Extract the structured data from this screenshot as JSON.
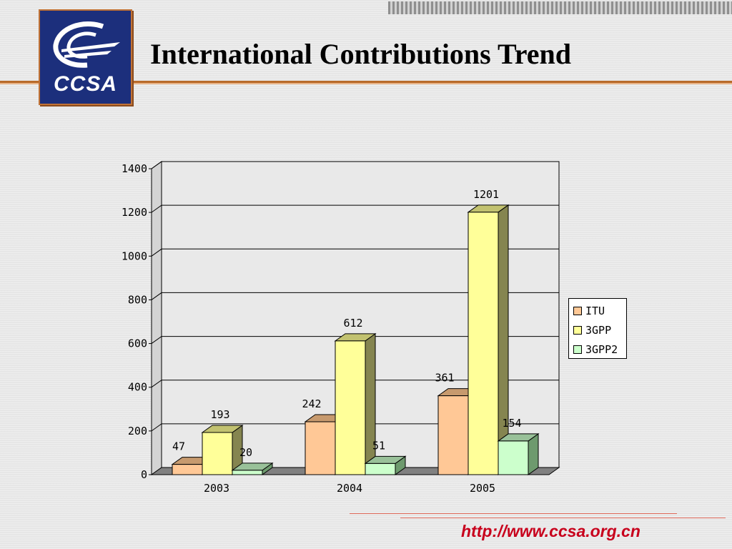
{
  "header": {
    "title": "International Contributions Trend",
    "logo_text": "CCSA"
  },
  "footer": {
    "url": "http://www.ccsa.org.cn"
  },
  "colors": {
    "ITU": "#ffc896",
    "3GPP": "#ffff99",
    "3GPP2": "#ccffcc",
    "logo_bg": "#1c2f7c",
    "accent": "#b86a2a",
    "url": "#c8001c"
  },
  "chart_data": {
    "type": "bar",
    "categories": [
      "2003",
      "2004",
      "2005"
    ],
    "series": [
      {
        "name": "ITU",
        "values": [
          47,
          242,
          361
        ]
      },
      {
        "name": "3GPP",
        "values": [
          193,
          612,
          1201
        ]
      },
      {
        "name": "3GPP2",
        "values": [
          20,
          51,
          154
        ]
      }
    ],
    "data_labels": [
      [
        "47",
        "242",
        "361"
      ],
      [
        "193",
        "612",
        "1201"
      ],
      [
        "20",
        "51",
        "154"
      ]
    ],
    "yticks": [
      "0",
      "200",
      "400",
      "600",
      "800",
      "1000",
      "1200",
      "1400"
    ],
    "ylim": [
      0,
      1400
    ],
    "grid": true,
    "legend_position": "right",
    "three_d": true
  }
}
